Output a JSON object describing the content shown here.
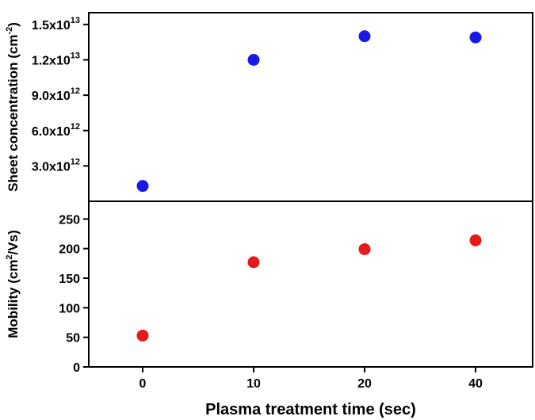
{
  "chart_data": [
    {
      "type": "scatter",
      "panel": "top",
      "ylabel": {
        "main": "Sheet concentration (cm",
        "sup": "-2",
        "close": ")"
      },
      "ylim": [
        0,
        16000000000000
      ],
      "yticks": [
        {
          "value": 3000000000000,
          "mantissa": "3.0x10",
          "exp": "12"
        },
        {
          "value": 6000000000000,
          "mantissa": "6.0x10",
          "exp": "12"
        },
        {
          "value": 9000000000000,
          "mantissa": "9.0x10",
          "exp": "12"
        },
        {
          "value": 12000000000000,
          "mantissa": "1.2x10",
          "exp": "13"
        },
        {
          "value": 15000000000000,
          "mantissa": "1.5x10",
          "exp": "13"
        }
      ],
      "series": [
        {
          "name": "Sheet concentration",
          "color": "#1a1ae6",
          "points": [
            {
              "x": "0",
              "y": 1300000000000
            },
            {
              "x": "10",
              "y": 12000000000000
            },
            {
              "x": "20",
              "y": 14000000000000
            },
            {
              "x": "40",
              "y": 13900000000000
            }
          ]
        }
      ]
    },
    {
      "type": "scatter",
      "panel": "bottom",
      "ylabel": {
        "main": "Mobility (cm",
        "sup": "2",
        "close": "/Vs)"
      },
      "ylim": [
        0,
        280
      ],
      "yticks": [
        {
          "value": 0,
          "label": "0"
        },
        {
          "value": 50,
          "label": "50"
        },
        {
          "value": 100,
          "label": "100"
        },
        {
          "value": 150,
          "label": "150"
        },
        {
          "value": 200,
          "label": "200"
        },
        {
          "value": 250,
          "label": "250"
        }
      ],
      "series": [
        {
          "name": "Mobility",
          "color": "#e61a1a",
          "points": [
            {
              "x": "0",
              "y": 53
            },
            {
              "x": "10",
              "y": 177
            },
            {
              "x": "20",
              "y": 199
            },
            {
              "x": "40",
              "y": 214
            }
          ]
        }
      ]
    }
  ],
  "x_axis": {
    "categories": [
      "0",
      "10",
      "20",
      "40"
    ],
    "xlabel": "Plasma treatment time (sec)"
  }
}
